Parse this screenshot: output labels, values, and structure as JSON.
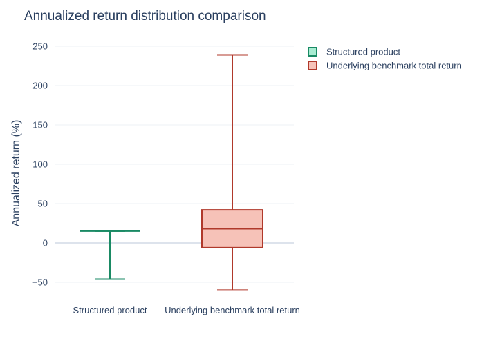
{
  "chart_data": {
    "type": "box",
    "title": "Annualized return distribution comparison",
    "xlabel": "",
    "ylabel": "Annualized return (%)",
    "ylim": [
      -60,
      255
    ],
    "yticks": [
      -50,
      0,
      50,
      100,
      150,
      200,
      250
    ],
    "ytick_labels": [
      "−50",
      "0",
      "50",
      "100",
      "150",
      "200",
      "250"
    ],
    "categories": [
      "Structured product",
      "Underlying benchmark total return"
    ],
    "grid": true,
    "legend_position": "top-right",
    "series": [
      {
        "name": "Structured product",
        "min": -46,
        "q1": 15,
        "median": 15,
        "q3": 15,
        "max": 15,
        "stroke": "#1a8a64",
        "fill": "#a8ecd2"
      },
      {
        "name": "Underlying benchmark total return",
        "min": -60,
        "q1": -6,
        "median": 18,
        "q3": 42,
        "max": 239,
        "stroke": "#b0392b",
        "fill": "#f6c2b8"
      }
    ]
  }
}
